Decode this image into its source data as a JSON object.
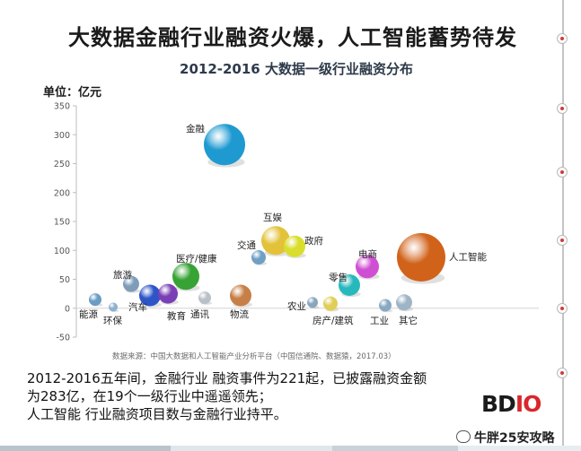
{
  "headline": "大数据金融行业融资火爆，人工智能蓄势待发",
  "chart_data": {
    "type": "scatter",
    "title": "2012-2016 大数据一级行业融资分布",
    "ylabel": "单位：亿元",
    "ylim": [
      -50,
      350
    ],
    "yticks": [
      -50,
      0,
      50,
      100,
      150,
      200,
      250,
      300,
      350
    ],
    "grid": false,
    "source": "数据来源：中国大数据和人工智能产业分析平台（中国信通院、数据猿，2017.03）",
    "points": [
      {
        "label": "能源",
        "x": 1,
        "y": 15,
        "color": "#6a9cc4"
      },
      {
        "label": "环保",
        "x": 2,
        "y": 2,
        "color": "#8fb0cf"
      },
      {
        "label": "旅游",
        "x": 3,
        "y": 42,
        "color": "#7f9db8"
      },
      {
        "label": "汽车",
        "x": 4,
        "y": 22,
        "color": "#2e55c8"
      },
      {
        "label": "教育",
        "x": 5,
        "y": 25,
        "color": "#7b3fb5"
      },
      {
        "label": "医疗/健康",
        "x": 6,
        "y": 55,
        "color": "#37a335"
      },
      {
        "label": "通讯",
        "x": 7,
        "y": 18,
        "color": "#b9c1c8"
      },
      {
        "label": "物流",
        "x": 8,
        "y": 22,
        "color": "#c77f47"
      },
      {
        "label": "金融",
        "x": 9,
        "y": 283,
        "color": "#1f9ad1"
      },
      {
        "label": "交通",
        "x": 10,
        "y": 88,
        "color": "#6f9fc4"
      },
      {
        "label": "互娱",
        "x": 11,
        "y": 117,
        "color": "#e3c23a"
      },
      {
        "label": "政府",
        "x": 12,
        "y": 107,
        "color": "#d9de2d"
      },
      {
        "label": "农业",
        "x": 13,
        "y": 10,
        "color": "#86a6c0"
      },
      {
        "label": "房产/建筑",
        "x": 14,
        "y": 8,
        "color": "#e0cf57"
      },
      {
        "label": "零售",
        "x": 15,
        "y": 40,
        "color": "#27b8bc"
      },
      {
        "label": "电商",
        "x": 16,
        "y": 72,
        "color": "#cf4fd3"
      },
      {
        "label": "工业",
        "x": 17,
        "y": 5,
        "color": "#89a9c2"
      },
      {
        "label": "其它",
        "x": 18,
        "y": 10,
        "color": "#9fb5c6"
      },
      {
        "label": "人工智能",
        "x": 19,
        "y": 88,
        "color": "#d1621a"
      }
    ]
  },
  "caption": [
    "2012-2016五年间，金融行业 融资事件为221起，已披露融资金额",
    "为283亿，在19个一级行业中遥遥领先；",
    "人工智能 行业融资项目数与金融行业持平。"
  ],
  "logo": {
    "text_a": "BD",
    "text_b": "IO"
  },
  "watermark": "牛胖25安攻略",
  "colors": {
    "accent": "#d23a3a",
    "rail": "#c4c4c4"
  }
}
